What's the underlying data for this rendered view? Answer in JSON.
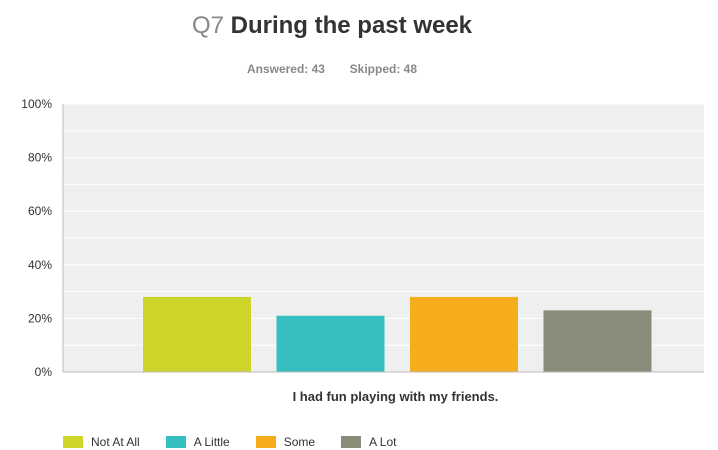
{
  "header": {
    "question_number": "Q7",
    "question_text": "During the past week",
    "answered_label": "Answered: 43",
    "skipped_label": "Skipped: 48"
  },
  "chart_data": {
    "type": "bar",
    "categories": [
      "I had fun playing with my friends."
    ],
    "series": [
      {
        "name": "Not At All",
        "values": [
          28
        ],
        "color": "#cdd42a"
      },
      {
        "name": "A Little",
        "values": [
          21
        ],
        "color": "#35bfc0"
      },
      {
        "name": "Some",
        "values": [
          28
        ],
        "color": "#f5ad1e"
      },
      {
        "name": "A Lot",
        "values": [
          23
        ],
        "color": "#8a8b79"
      }
    ],
    "ylim": [
      0,
      100
    ],
    "yticks": [
      "0%",
      "20%",
      "40%",
      "60%",
      "80%",
      "100%"
    ],
    "grid": true,
    "legend": "bottom-left",
    "plot_background": "#efefef"
  }
}
